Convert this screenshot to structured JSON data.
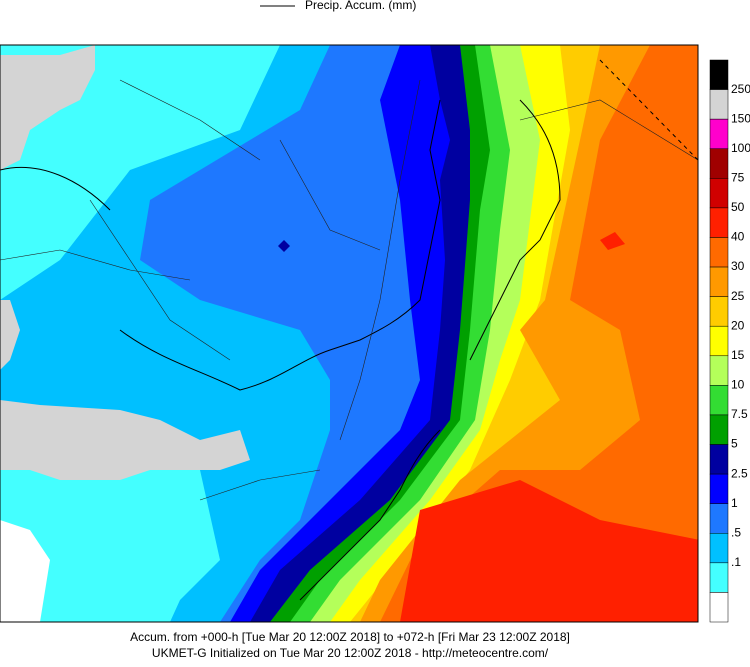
{
  "header": {
    "legend_label": "Precip. Accum. (mm)"
  },
  "colorbar": {
    "labels": [
      "250",
      "150",
      "100",
      "75",
      "50",
      "40",
      "30",
      "25",
      "20",
      "15",
      "10",
      "7.5",
      "5",
      "2.5",
      "1",
      ".5",
      ".1"
    ],
    "colors": [
      "#000000",
      "#d4d4d4",
      "#ff00cc",
      "#a00000",
      "#d00000",
      "#ff2000",
      "#ff6a00",
      "#ff9900",
      "#ffcc00",
      "#ffff00",
      "#b4ff5a",
      "#33dd33",
      "#00a000",
      "#0000a0",
      "#0000ff",
      "#1e78ff",
      "#00c0ff",
      "#44ffff",
      "#ffffff"
    ]
  },
  "footer": {
    "line1": "Accum. from +000-h [Tue Mar 20 12:00Z 2018] to +072-h [Fri Mar 23 12:00Z 2018]",
    "line2": "UKMET-G Initialized on Tue Mar 20 12:00Z 2018 - http://meteocentre.com/"
  }
}
